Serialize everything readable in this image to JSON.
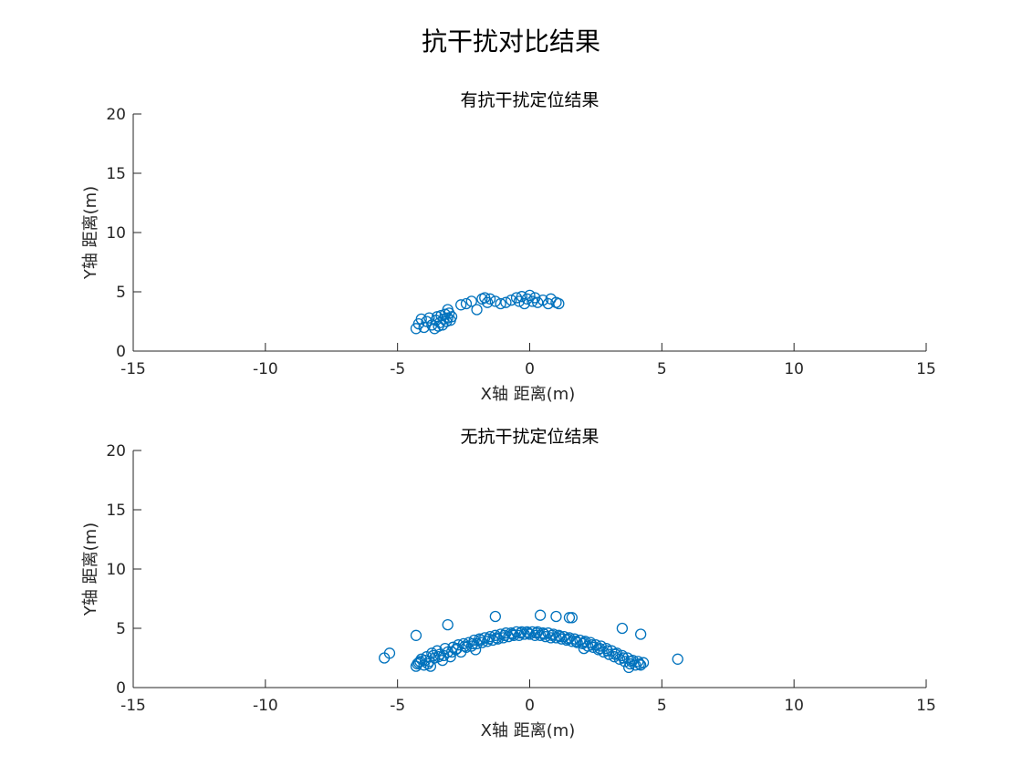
{
  "figure_title": "抗干扰对比结果",
  "colors": {
    "marker": "#0072BD",
    "axis": "#262626",
    "background": "#ffffff"
  },
  "chart_data": [
    {
      "type": "scatter",
      "title": "有抗干扰定位结果",
      "xlabel": "X轴 距离(m)",
      "ylabel": "Y轴 距离(m)",
      "xlim": [
        -15,
        15
      ],
      "ylim": [
        0,
        20
      ],
      "xticks": [
        -15,
        -10,
        -5,
        0,
        5,
        10,
        15
      ],
      "yticks": [
        0,
        5,
        10,
        15,
        20
      ],
      "marker": "open-circle",
      "points": [
        [
          -4.3,
          1.9
        ],
        [
          -4.2,
          2.3
        ],
        [
          -4.1,
          2.7
        ],
        [
          -4.0,
          2.0
        ],
        [
          -3.9,
          2.5
        ],
        [
          -3.8,
          2.8
        ],
        [
          -3.7,
          2.2
        ],
        [
          -3.6,
          1.9
        ],
        [
          -3.55,
          2.6
        ],
        [
          -3.5,
          2.9
        ],
        [
          -3.45,
          2.1
        ],
        [
          -3.4,
          2.4
        ],
        [
          -3.35,
          3.0
        ],
        [
          -3.3,
          2.2
        ],
        [
          -3.25,
          2.7
        ],
        [
          -3.2,
          3.1
        ],
        [
          -3.15,
          2.5
        ],
        [
          -3.1,
          2.8
        ],
        [
          -3.05,
          3.2
        ],
        [
          -3.0,
          2.6
        ],
        [
          -2.95,
          2.9
        ],
        [
          -3.1,
          3.5
        ],
        [
          -2.6,
          3.9
        ],
        [
          -2.4,
          4.0
        ],
        [
          -2.2,
          4.2
        ],
        [
          -2.0,
          3.5
        ],
        [
          -1.8,
          4.4
        ],
        [
          -1.7,
          4.5
        ],
        [
          -1.6,
          4.1
        ],
        [
          -1.5,
          4.4
        ],
        [
          -1.3,
          4.2
        ],
        [
          -1.1,
          4.0
        ],
        [
          -0.9,
          4.1
        ],
        [
          -0.7,
          4.3
        ],
        [
          -0.5,
          4.5
        ],
        [
          -0.4,
          4.2
        ],
        [
          -0.3,
          4.6
        ],
        [
          -0.2,
          4.0
        ],
        [
          -0.1,
          4.4
        ],
        [
          0.0,
          4.7
        ],
        [
          0.1,
          4.2
        ],
        [
          0.2,
          4.5
        ],
        [
          0.3,
          4.1
        ],
        [
          0.5,
          4.3
        ],
        [
          0.7,
          4.0
        ],
        [
          0.8,
          4.4
        ],
        [
          1.0,
          4.1
        ],
        [
          1.1,
          4.0
        ]
      ]
    },
    {
      "type": "scatter",
      "title": "无抗干扰定位结果",
      "xlabel": "X轴 距离(m)",
      "ylabel": "Y轴 距离(m)",
      "xlim": [
        -15,
        15
      ],
      "ylim": [
        0,
        20
      ],
      "xticks": [
        -15,
        -10,
        -5,
        0,
        5,
        10,
        15
      ],
      "yticks": [
        0,
        5,
        10,
        15,
        20
      ],
      "marker": "open-circle",
      "points": [
        [
          -4.3,
          1.8
        ],
        [
          -4.2,
          2.1
        ],
        [
          -4.1,
          2.4
        ],
        [
          -4.0,
          1.9
        ],
        [
          -3.9,
          2.6
        ],
        [
          -3.8,
          2.2
        ],
        [
          -3.7,
          2.9
        ],
        [
          -3.6,
          2.5
        ],
        [
          -3.5,
          3.1
        ],
        [
          -3.4,
          2.8
        ],
        [
          -3.3,
          2.3
        ],
        [
          -3.2,
          3.3
        ],
        [
          -3.1,
          3.0
        ],
        [
          -3.0,
          2.6
        ],
        [
          -2.9,
          3.4
        ],
        [
          -2.8,
          3.2
        ],
        [
          -2.7,
          3.6
        ],
        [
          -2.6,
          3.0
        ],
        [
          -2.5,
          3.7
        ],
        [
          -2.4,
          3.4
        ],
        [
          -2.3,
          3.8
        ],
        [
          -2.2,
          3.5
        ],
        [
          -2.1,
          4.0
        ],
        [
          -2.0,
          3.7
        ],
        [
          -1.9,
          4.1
        ],
        [
          -1.8,
          3.8
        ],
        [
          -1.7,
          4.2
        ],
        [
          -1.6,
          3.9
        ],
        [
          -1.5,
          4.3
        ],
        [
          -1.4,
          4.0
        ],
        [
          -1.3,
          4.4
        ],
        [
          -1.2,
          4.1
        ],
        [
          -1.1,
          4.5
        ],
        [
          -1.0,
          4.2
        ],
        [
          -0.9,
          4.6
        ],
        [
          -0.8,
          4.3
        ],
        [
          -0.7,
          4.6
        ],
        [
          -0.6,
          4.4
        ],
        [
          -0.5,
          4.7
        ],
        [
          -0.4,
          4.4
        ],
        [
          -0.3,
          4.7
        ],
        [
          -0.2,
          4.5
        ],
        [
          -0.1,
          4.7
        ],
        [
          0.0,
          4.5
        ],
        [
          0.1,
          4.7
        ],
        [
          0.2,
          4.4
        ],
        [
          0.3,
          4.7
        ],
        [
          0.4,
          4.4
        ],
        [
          0.5,
          4.6
        ],
        [
          0.6,
          4.3
        ],
        [
          0.7,
          4.6
        ],
        [
          0.8,
          4.2
        ],
        [
          0.9,
          4.5
        ],
        [
          1.0,
          4.2
        ],
        [
          1.1,
          4.4
        ],
        [
          1.2,
          4.1
        ],
        [
          1.3,
          4.3
        ],
        [
          1.4,
          4.0
        ],
        [
          1.5,
          4.2
        ],
        [
          1.6,
          3.9
        ],
        [
          1.7,
          4.1
        ],
        [
          1.8,
          3.8
        ],
        [
          1.9,
          4.0
        ],
        [
          2.0,
          3.7
        ],
        [
          2.1,
          3.9
        ],
        [
          2.2,
          3.5
        ],
        [
          2.3,
          3.8
        ],
        [
          2.4,
          3.4
        ],
        [
          2.5,
          3.6
        ],
        [
          2.6,
          3.2
        ],
        [
          2.7,
          3.5
        ],
        [
          2.8,
          3.0
        ],
        [
          2.9,
          3.3
        ],
        [
          3.0,
          2.8
        ],
        [
          3.1,
          3.1
        ],
        [
          3.2,
          2.6
        ],
        [
          3.3,
          2.9
        ],
        [
          3.4,
          2.4
        ],
        [
          3.5,
          2.7
        ],
        [
          3.6,
          2.2
        ],
        [
          3.7,
          2.5
        ],
        [
          3.8,
          2.0
        ],
        [
          3.9,
          2.3
        ],
        [
          4.0,
          1.9
        ],
        [
          4.1,
          2.2
        ],
        [
          4.2,
          1.9
        ],
        [
          4.3,
          2.1
        ],
        [
          -4.25,
          2.0
        ],
        [
          -4.15,
          2.2
        ],
        [
          -3.95,
          2.3
        ],
        [
          -3.85,
          2.0
        ],
        [
          -3.65,
          2.7
        ],
        [
          -3.45,
          2.6
        ],
        [
          -3.25,
          2.7
        ],
        [
          -2.95,
          3.0
        ],
        [
          -2.75,
          3.3
        ],
        [
          -2.45,
          3.5
        ],
        [
          -2.15,
          3.7
        ],
        [
          -1.85,
          4.0
        ],
        [
          -1.55,
          4.1
        ],
        [
          -1.25,
          4.2
        ],
        [
          -0.95,
          4.4
        ],
        [
          -0.65,
          4.5
        ],
        [
          -0.35,
          4.6
        ],
        [
          -0.05,
          4.6
        ],
        [
          0.25,
          4.6
        ],
        [
          0.55,
          4.5
        ],
        [
          0.85,
          4.4
        ],
        [
          1.15,
          4.3
        ],
        [
          1.45,
          4.1
        ],
        [
          1.75,
          3.9
        ],
        [
          2.05,
          3.8
        ],
        [
          2.35,
          3.6
        ],
        [
          2.65,
          3.3
        ],
        [
          2.95,
          3.1
        ],
        [
          3.25,
          2.8
        ],
        [
          3.55,
          2.5
        ],
        [
          3.85,
          2.2
        ],
        [
          4.15,
          2.0
        ],
        [
          -3.75,
          1.8
        ],
        [
          3.75,
          1.7
        ],
        [
          -2.05,
          3.2
        ],
        [
          2.05,
          3.3
        ],
        [
          -5.5,
          2.5
        ],
        [
          -5.3,
          2.9
        ],
        [
          -4.3,
          4.4
        ],
        [
          -3.1,
          5.3
        ],
        [
          -1.3,
          6.0
        ],
        [
          0.4,
          6.1
        ],
        [
          1.0,
          6.0
        ],
        [
          1.5,
          5.9
        ],
        [
          1.6,
          5.9
        ],
        [
          3.5,
          5.0
        ],
        [
          4.2,
          4.5
        ],
        [
          5.6,
          2.4
        ]
      ]
    }
  ]
}
